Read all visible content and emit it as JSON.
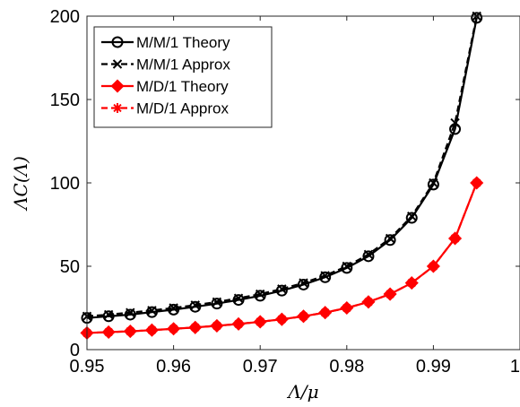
{
  "chart_data": {
    "type": "line",
    "xlabel": "Λ/μ",
    "ylabel": "ΛC(Λ)",
    "xlim": [
      0.95,
      1.0
    ],
    "ylim": [
      0,
      200
    ],
    "x_ticks": [
      0.95,
      0.96,
      0.97,
      0.98,
      0.99,
      1
    ],
    "x_tick_labels": [
      "0.95",
      "0.96",
      "0.97",
      "0.98",
      "0.99",
      "1"
    ],
    "y_ticks": [
      0,
      50,
      100,
      150,
      200
    ],
    "y_tick_labels": [
      "0",
      "50",
      "100",
      "150",
      "200"
    ],
    "grid": false,
    "legend_position": "top-left",
    "x": [
      0.95,
      0.9525,
      0.955,
      0.9575,
      0.96,
      0.9625,
      0.965,
      0.9675,
      0.97,
      0.9725,
      0.975,
      0.9775,
      0.98,
      0.9825,
      0.985,
      0.9875,
      0.99,
      0.9925,
      0.995
    ],
    "series": [
      {
        "name": "M/M/1 Theory",
        "color": "#000000",
        "line": "solid",
        "marker": "circle",
        "values": [
          19,
          20,
          21,
          22.5,
          24,
          25.7,
          27.6,
          29.8,
          32.3,
          35.4,
          39,
          43.4,
          49,
          56,
          65.7,
          79,
          99,
          132.3,
          199
        ]
      },
      {
        "name": "M/M/1 Approx",
        "color": "#000000",
        "line": "dashed",
        "marker": "x",
        "values": [
          20,
          21,
          22.2,
          23.5,
          25,
          26.7,
          28.6,
          30.8,
          33.3,
          36.4,
          40,
          44.4,
          50,
          57.1,
          66.7,
          80,
          100,
          136,
          200
        ]
      },
      {
        "name": "M/D/1 Theory",
        "color": "#ff0000",
        "line": "solid",
        "marker": "diamond",
        "values": [
          10,
          10.5,
          11,
          11.7,
          12.5,
          13.3,
          14.3,
          15.4,
          16.7,
          18.2,
          20,
          22.2,
          25,
          28.6,
          33.3,
          40,
          50,
          66.7,
          100
        ]
      },
      {
        "name": "M/D/1 Approx",
        "color": "#ff0000",
        "line": "dashed",
        "marker": "asterisk",
        "values": [
          10,
          10.5,
          11,
          11.7,
          12.5,
          13.3,
          14.3,
          15.4,
          16.7,
          18.2,
          20,
          22.2,
          25,
          28.6,
          33.3,
          40,
          50,
          66.7,
          100
        ]
      }
    ]
  }
}
